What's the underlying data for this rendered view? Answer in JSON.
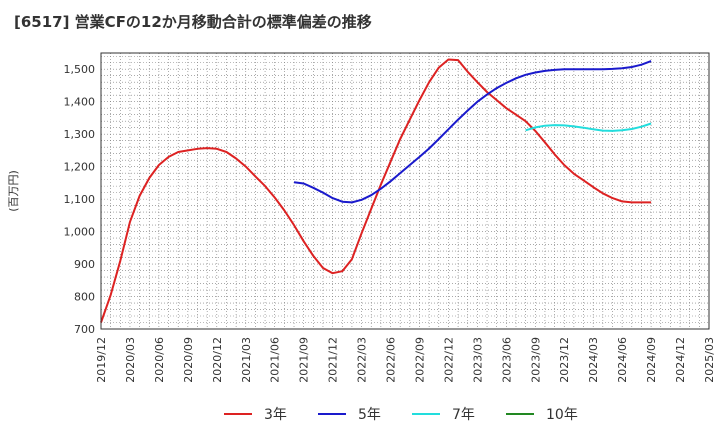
{
  "chart_data": {
    "type": "line",
    "title": "[6517]  営業CFの12か月移動合計の標準偏差の推移",
    "ylabel": "(百万円)",
    "xlabel": "",
    "ylim": [
      700,
      1550
    ],
    "yticks": [
      700,
      800,
      900,
      1000,
      1100,
      1200,
      1300,
      1400,
      1500
    ],
    "ytick_labels": [
      "700",
      "800",
      "900",
      "1,000",
      "1,100",
      "1,200",
      "1,300",
      "1,400",
      "1,500"
    ],
    "xlim": [
      "2019-12",
      "2025-03"
    ],
    "xticks": [
      "2019/12",
      "2020/03",
      "2020/06",
      "2020/09",
      "2020/12",
      "2021/03",
      "2021/06",
      "2021/09",
      "2021/12",
      "2022/03",
      "2022/06",
      "2022/09",
      "2022/12",
      "2023/03",
      "2023/06",
      "2023/09",
      "2023/12",
      "2024/03",
      "2024/06",
      "2024/09",
      "2024/12",
      "2025/03"
    ],
    "grid": true,
    "legend_position": "bottom",
    "series": [
      {
        "name": "3年",
        "color": "#dd2222",
        "x": [
          "2019-12",
          "2020-01",
          "2020-02",
          "2020-03",
          "2020-04",
          "2020-05",
          "2020-06",
          "2020-07",
          "2020-08",
          "2020-09",
          "2020-10",
          "2020-11",
          "2020-12",
          "2021-01",
          "2021-02",
          "2021-03",
          "2021-04",
          "2021-05",
          "2021-06",
          "2021-07",
          "2021-08",
          "2021-09",
          "2021-10",
          "2021-11",
          "2021-12",
          "2022-01",
          "2022-02",
          "2022-03",
          "2022-04",
          "2022-05",
          "2022-06",
          "2022-07",
          "2022-08",
          "2022-09",
          "2022-10",
          "2022-11",
          "2022-12",
          "2023-01",
          "2023-02",
          "2023-03",
          "2023-04",
          "2023-05",
          "2023-06",
          "2023-07",
          "2023-08",
          "2023-09",
          "2023-10",
          "2023-11",
          "2023-12",
          "2024-01",
          "2024-02",
          "2024-03",
          "2024-04",
          "2024-05",
          "2024-06",
          "2024-07",
          "2024-08",
          "2024-09"
        ],
        "values": [
          720,
          805,
          910,
          1030,
          1110,
          1165,
          1205,
          1230,
          1245,
          1250,
          1255,
          1257,
          1255,
          1245,
          1225,
          1200,
          1170,
          1140,
          1105,
          1065,
          1020,
          970,
          925,
          888,
          872,
          878,
          915,
          995,
          1070,
          1145,
          1215,
          1285,
          1345,
          1405,
          1460,
          1505,
          1530,
          1528,
          1492,
          1460,
          1430,
          1405,
          1380,
          1360,
          1340,
          1310,
          1275,
          1238,
          1205,
          1178,
          1158,
          1137,
          1118,
          1103,
          1093,
          1090,
          1090,
          1090
        ],
        "_note": "trailing values hold flat"
      },
      {
        "name": "5年",
        "color": "#1a1acc",
        "x": [
          "2021-08",
          "2021-09",
          "2021-10",
          "2021-11",
          "2021-12",
          "2022-01",
          "2022-02",
          "2022-03",
          "2022-04",
          "2022-05",
          "2022-06",
          "2022-07",
          "2022-08",
          "2022-09",
          "2022-10",
          "2022-11",
          "2022-12",
          "2023-01",
          "2023-02",
          "2023-03",
          "2023-04",
          "2023-05",
          "2023-06",
          "2023-07",
          "2023-08",
          "2023-09",
          "2023-10",
          "2023-11",
          "2023-12",
          "2024-01",
          "2024-02",
          "2024-03",
          "2024-04",
          "2024-05",
          "2024-06",
          "2024-07",
          "2024-08",
          "2024-09"
        ],
        "values": [
          1152,
          1148,
          1135,
          1120,
          1103,
          1092,
          1090,
          1098,
          1112,
          1132,
          1155,
          1180,
          1205,
          1230,
          1256,
          1285,
          1315,
          1345,
          1373,
          1400,
          1422,
          1442,
          1458,
          1472,
          1483,
          1490,
          1495,
          1498,
          1500,
          1500,
          1500,
          1500,
          1500,
          1501,
          1503,
          1507,
          1514,
          1525
        ]
      },
      {
        "name": "7年",
        "color": "#22dddd",
        "x": [
          "2023-08",
          "2023-09",
          "2023-10",
          "2023-11",
          "2023-12",
          "2024-01",
          "2024-02",
          "2024-03",
          "2024-04",
          "2024-05",
          "2024-06",
          "2024-07",
          "2024-08",
          "2024-09"
        ],
        "values": [
          1312,
          1321,
          1326,
          1328,
          1327,
          1324,
          1320,
          1315,
          1311,
          1310,
          1312,
          1316,
          1323,
          1333
        ]
      },
      {
        "name": "10年",
        "color": "#228822",
        "x": [],
        "values": []
      }
    ]
  }
}
